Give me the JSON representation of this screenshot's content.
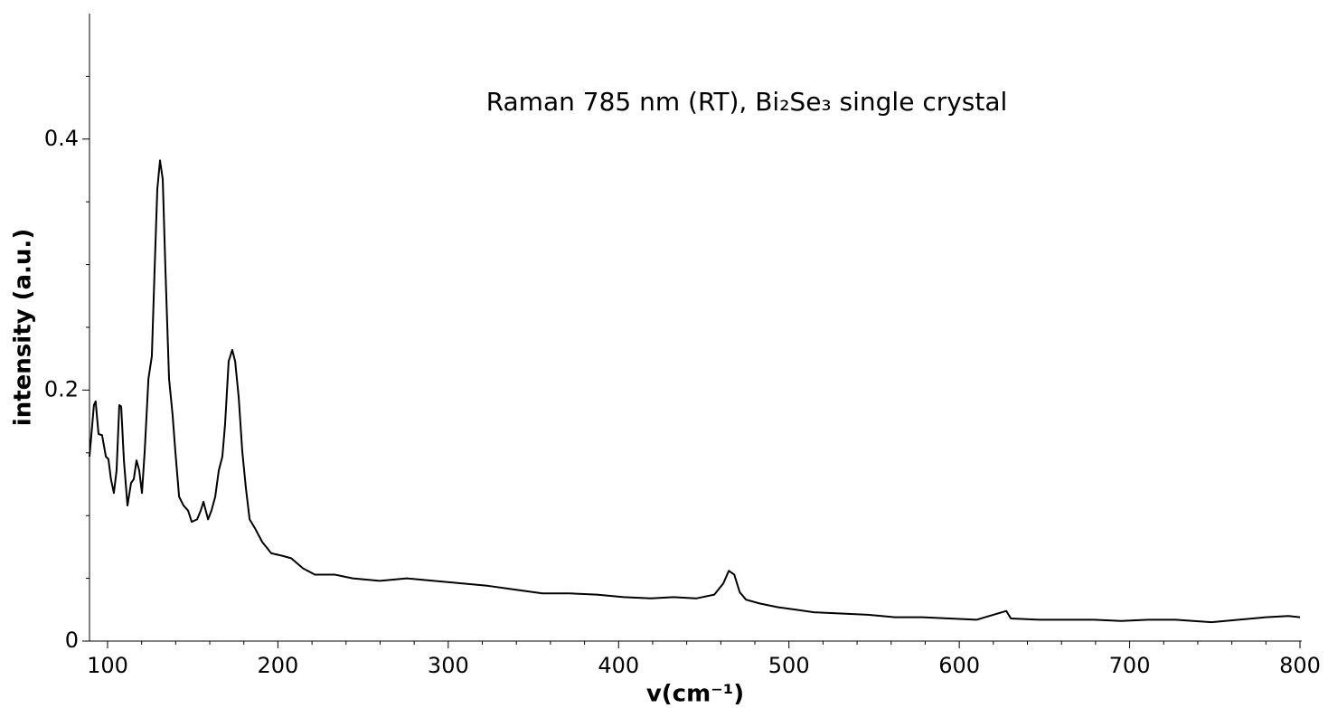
{
  "chart_data": {
    "type": "line",
    "title": "Raman 785 nm (RT), Bi₂Se₃ single crystal",
    "xlabel": "v(cm⁻¹)",
    "ylabel": "intensity (a.u.)",
    "xlim": [
      89.4,
      800
    ],
    "ylim": [
      0,
      0.5
    ],
    "xticks": [
      100,
      200,
      300,
      400,
      500,
      600,
      700,
      800
    ],
    "yticks": [
      0,
      0.2,
      0.4
    ],
    "xminorticks": [
      120,
      140,
      160,
      180,
      220,
      240,
      260,
      280,
      320,
      340,
      360,
      380,
      420,
      440,
      460,
      480,
      520,
      540,
      560,
      580,
      620,
      640,
      660,
      680,
      720,
      740,
      760,
      780
    ],
    "yminorticks": [
      0.05,
      0.1,
      0.15,
      0.25,
      0.3,
      0.35,
      0.45
    ],
    "grid": false,
    "series": [
      {
        "color": "#000000",
        "x": [
          89.4,
          92,
          93,
          94.7,
          96.8,
          99,
          100.5,
          102,
          103.7,
          105.3,
          106.9,
          108,
          109.6,
          111.7,
          113.8,
          115.4,
          117,
          118.6,
          120.2,
          121.8,
          124,
          126,
          127.6,
          129.2,
          130.8,
          132.4,
          134,
          136.1,
          138.2,
          139.8,
          142,
          144.6,
          147.3,
          149.4,
          152.6,
          154.7,
          156.3,
          159,
          161,
          163.2,
          165.3,
          167.4,
          169,
          171.1,
          173.2,
          174.9,
          177,
          179.1,
          181.2,
          183.4,
          186.5,
          190.8,
          196.1,
          202.5,
          207.8,
          214.7,
          221.6,
          233.2,
          243.9,
          259.8,
          275.7,
          291.6,
          307.6,
          323.5,
          339.4,
          355.3,
          371.2,
          387.2,
          403.1,
          419,
          432.3,
          445.6,
          456.2,
          461.5,
          464.7,
          467.9,
          471.1,
          474.8,
          482.8,
          493.4,
          504,
          514.6,
          530.5,
          546.4,
          562.3,
          578.3,
          594.2,
          610.1,
          627.6,
          630.3,
          647.2,
          663.2,
          679.1,
          695,
          711,
          726.9,
          748.1,
          764,
          779.9,
          793.2,
          800
        ],
        "values": [
          0.147,
          0.188,
          0.191,
          0.165,
          0.164,
          0.147,
          0.145,
          0.129,
          0.118,
          0.136,
          0.188,
          0.187,
          0.144,
          0.108,
          0.126,
          0.129,
          0.144,
          0.136,
          0.118,
          0.151,
          0.209,
          0.227,
          0.295,
          0.36,
          0.383,
          0.368,
          0.295,
          0.209,
          0.18,
          0.151,
          0.115,
          0.108,
          0.104,
          0.095,
          0.097,
          0.104,
          0.111,
          0.097,
          0.104,
          0.115,
          0.136,
          0.147,
          0.173,
          0.223,
          0.232,
          0.223,
          0.194,
          0.151,
          0.122,
          0.097,
          0.09,
          0.079,
          0.07,
          0.068,
          0.066,
          0.058,
          0.053,
          0.053,
          0.05,
          0.048,
          0.05,
          0.048,
          0.046,
          0.044,
          0.041,
          0.038,
          0.038,
          0.037,
          0.035,
          0.034,
          0.035,
          0.034,
          0.037,
          0.046,
          0.056,
          0.053,
          0.039,
          0.033,
          0.03,
          0.027,
          0.025,
          0.023,
          0.022,
          0.021,
          0.019,
          0.019,
          0.018,
          0.017,
          0.024,
          0.018,
          0.017,
          0.017,
          0.017,
          0.016,
          0.017,
          0.017,
          0.015,
          0.017,
          0.019,
          0.02,
          0.019
        ]
      }
    ]
  }
}
